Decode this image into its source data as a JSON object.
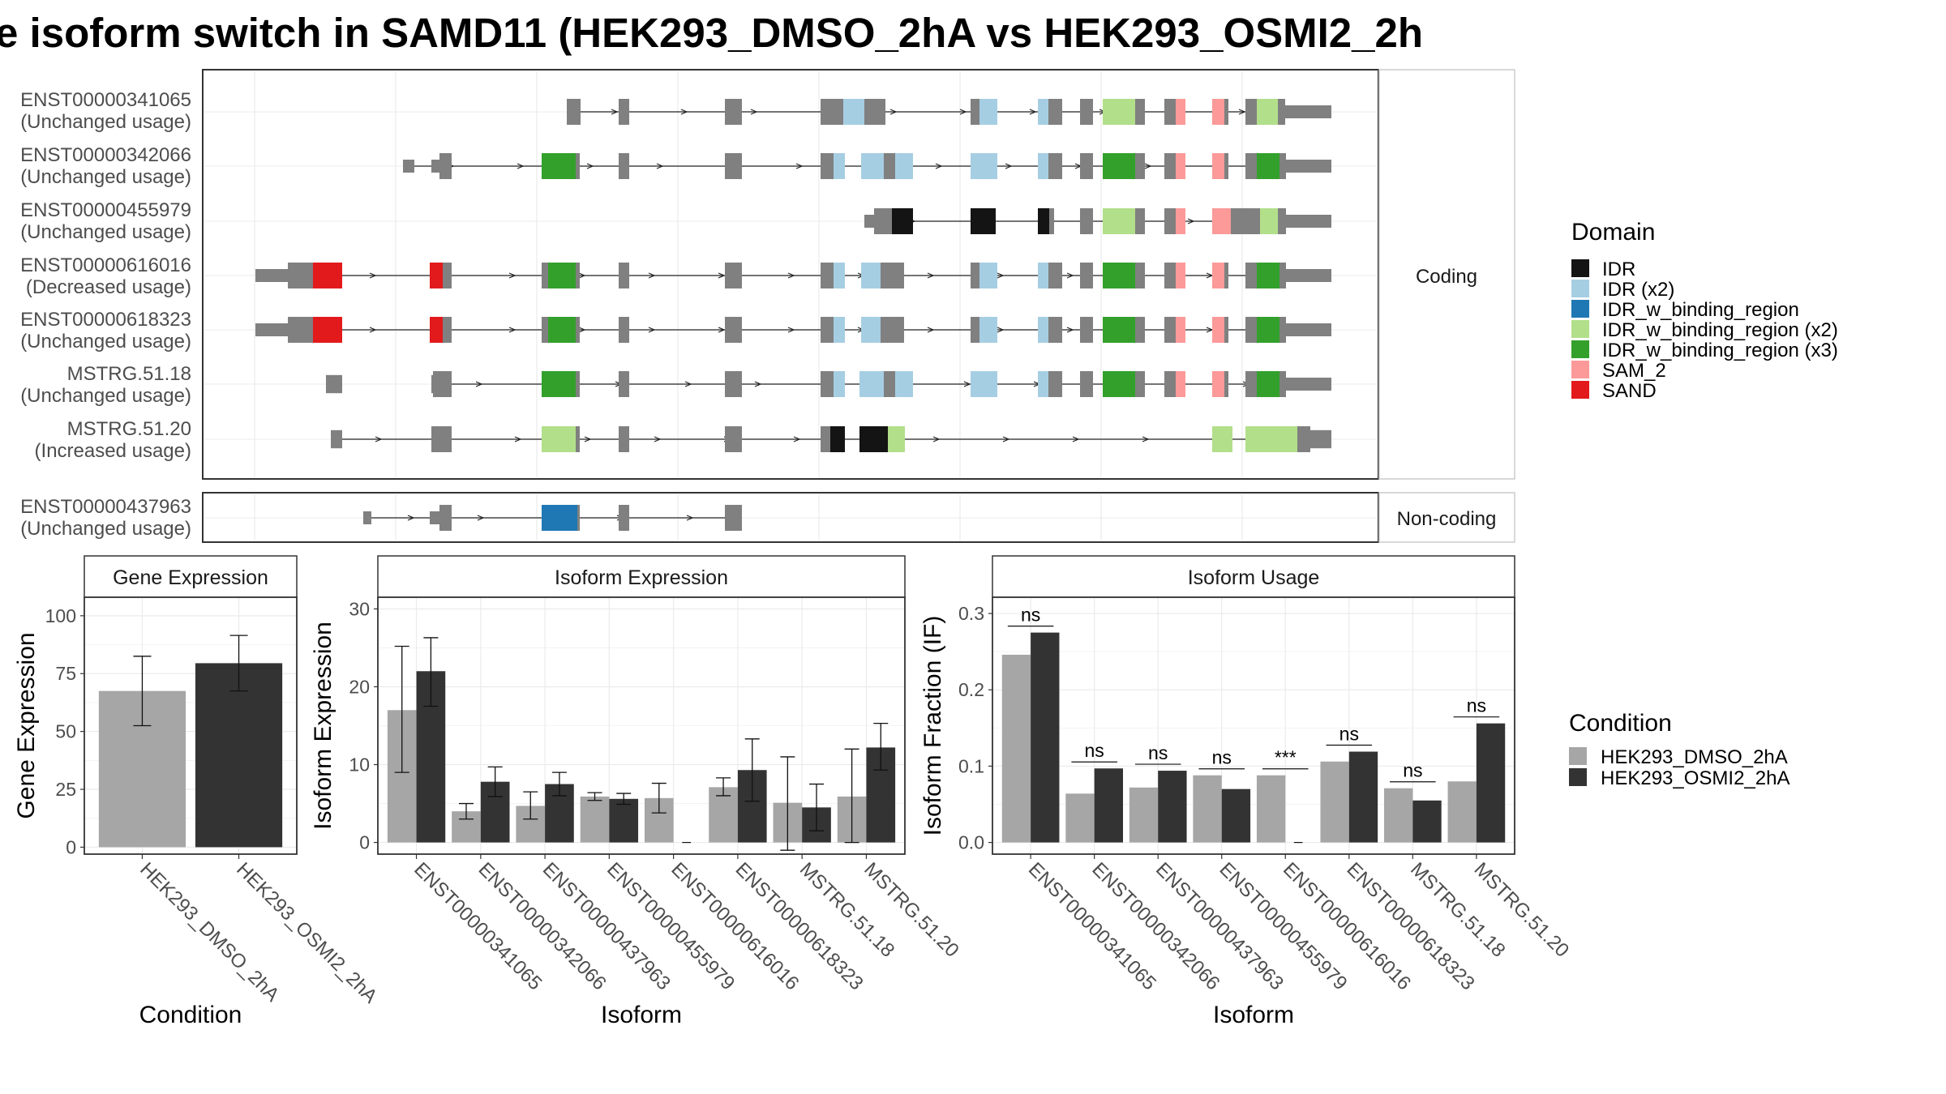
{
  "title": "e isoform switch in SAMD11 (HEK293_DMSO_2hA vs HEK293_OSMI2_2h",
  "colors": {
    "exon": "#808080",
    "IDR": "#141414",
    "IDR (x2)": "#a6cee3",
    "IDR_w_binding_region": "#1f78b4",
    "IDR_w_binding_region (x2)": "#b2df8a",
    "IDR_w_binding_region (x3)": "#33a02c",
    "SAM_2": "#fb9a99",
    "SAND": "#e31a1c",
    "DMSO": "#a6a6a6",
    "OSMI2": "#333333"
  },
  "structure": {
    "facets": [
      {
        "label": "Coding",
        "rows": [
          0,
          1,
          2,
          3,
          4,
          5,
          6
        ]
      },
      {
        "label": "Non-coding",
        "rows": [
          7
        ]
      }
    ],
    "isoforms": [
      {
        "id": "ENST00000341065",
        "usage": "(Unchanged usage)"
      },
      {
        "id": "ENST00000342066",
        "usage": "(Unchanged usage)"
      },
      {
        "id": "ENST00000455979",
        "usage": "(Unchanged usage)"
      },
      {
        "id": "ENST00000616016",
        "usage": "(Decreased usage)"
      },
      {
        "id": "ENST00000618323",
        "usage": "(Unchanged usage)"
      },
      {
        "id": "MSTRG.51.18",
        "usage": "(Unchanged usage)"
      },
      {
        "id": "MSTRG.51.20",
        "usage": "(Increased usage)"
      },
      {
        "id": "ENST00000437963",
        "usage": "(Unchanged usage)"
      }
    ]
  },
  "legend_domain": {
    "title": "Domain",
    "items": [
      "IDR",
      "IDR (x2)",
      "IDR_w_binding_region",
      "IDR_w_binding_region (x2)",
      "IDR_w_binding_region (x3)",
      "SAM_2",
      "SAND"
    ]
  },
  "legend_condition": {
    "title": "Condition",
    "items": [
      "HEK293_DMSO_2hA",
      "HEK293_OSMI2_2hA"
    ]
  },
  "chart_data": [
    {
      "type": "bar",
      "title": "Gene Expression",
      "xlabel": "Condition",
      "ylabel": "Gene Expression",
      "categories": [
        "HEK293_DMSO_2hA",
        "HEK293_OSMI2_2hA"
      ],
      "values": [
        67.5,
        79.5
      ],
      "errors": [
        [
          52.5,
          82.5
        ],
        [
          67.5,
          91.5
        ]
      ],
      "ylim": [
        -3,
        108
      ],
      "yticks": [
        0,
        25,
        50,
        75,
        100
      ]
    },
    {
      "type": "bar",
      "title": "Isoform Expression",
      "xlabel": "Isoform",
      "ylabel": "Isoform Expression",
      "categories": [
        "ENST00000341065",
        "ENST00000342066",
        "ENST00000437963",
        "ENST00000455979",
        "ENST00000616016",
        "ENST00000618323",
        "MSTRG.51.18",
        "MSTRG.51.20"
      ],
      "series": [
        {
          "name": "HEK293_DMSO_2hA",
          "values": [
            17,
            4,
            4.7,
            5.9,
            5.7,
            7.1,
            5.1,
            5.9
          ],
          "errors": [
            [
              9,
              25.2
            ],
            [
              3,
              5
            ],
            [
              3,
              6.5
            ],
            [
              5.4,
              6.4
            ],
            [
              3.8,
              7.6
            ],
            [
              6,
              8.3
            ],
            [
              -1,
              11
            ],
            [
              0,
              12
            ]
          ]
        },
        {
          "name": "HEK293_OSMI2_2hA",
          "values": [
            22,
            7.8,
            7.5,
            5.6,
            0,
            9.3,
            4.5,
            12.2
          ],
          "errors": [
            [
              17.5,
              26.3
            ],
            [
              5.9,
              9.7
            ],
            [
              6,
              9
            ],
            [
              4.9,
              6.3
            ],
            [
              0,
              0
            ],
            [
              5.3,
              13.3
            ],
            [
              1.5,
              7.5
            ],
            [
              9.3,
              15.3
            ]
          ]
        }
      ],
      "ylim": [
        -1.5,
        31.5
      ],
      "yticks": [
        0,
        10,
        20,
        30
      ]
    },
    {
      "type": "bar",
      "title": "Isoform Usage",
      "xlabel": "Isoform",
      "ylabel": "Isoform Fraction (IF)",
      "categories": [
        "ENST00000341065",
        "ENST00000342066",
        "ENST00000437963",
        "ENST00000455979",
        "ENST00000616016",
        "ENST00000618323",
        "MSTRG.51.18",
        "MSTRG.51.20"
      ],
      "series": [
        {
          "name": "HEK293_DMSO_2hA",
          "values": [
            0.246,
            0.064,
            0.072,
            0.088,
            0.088,
            0.106,
            0.071,
            0.08
          ]
        },
        {
          "name": "HEK293_OSMI2_2hA",
          "values": [
            0.275,
            0.097,
            0.094,
            0.07,
            0.0,
            0.119,
            0.055,
            0.156
          ]
        }
      ],
      "significance": [
        "ns",
        "ns",
        "ns",
        "ns",
        "***",
        "ns",
        "ns",
        "ns"
      ],
      "ylim": [
        -0.0153,
        0.3213
      ],
      "yticks": [
        0.0,
        0.1,
        0.2,
        0.3
      ],
      "ytick_labels": [
        "0.0",
        "0.1",
        "0.2",
        "0.3"
      ]
    }
  ]
}
